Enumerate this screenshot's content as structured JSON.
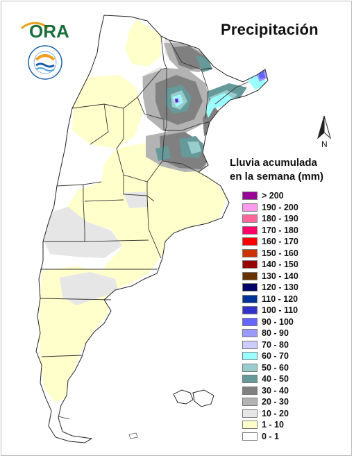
{
  "title": "Precipitación",
  "logo_ora": {
    "text": "ORA"
  },
  "logo_inta": {
    "ring_text": "INSTITUTO NACIONAL DE TECNOLOGÍA AGROPECUARIA · ARGENTINA"
  },
  "north_arrow": {
    "label": "N"
  },
  "legend": {
    "title_line1": "Lluvia acumulada",
    "title_line2": "en la semana (mm)",
    "items": [
      {
        "label": "> 200",
        "color": "#990099"
      },
      {
        "label": "190 - 200",
        "color": "#ff99ee"
      },
      {
        "label": "180 - 190",
        "color": "#ff6699"
      },
      {
        "label": "170 - 180",
        "color": "#ff0066"
      },
      {
        "label": "160 - 170",
        "color": "#ff0000"
      },
      {
        "label": "150 - 160",
        "color": "#cc3300"
      },
      {
        "label": "140 - 150",
        "color": "#990000"
      },
      {
        "label": "130 - 140",
        "color": "#663300"
      },
      {
        "label": "120 - 130",
        "color": "#000066"
      },
      {
        "label": "110 - 120",
        "color": "#003399"
      },
      {
        "label": "100 - 110",
        "color": "#3333cc"
      },
      {
        "label": "90 - 100",
        "color": "#6666ff"
      },
      {
        "label": "80 - 90",
        "color": "#9999ff"
      },
      {
        "label": "70 - 80",
        "color": "#ccccff"
      },
      {
        "label": "60 - 70",
        "color": "#99ffff"
      },
      {
        "label": "50 - 60",
        "color": "#99cccc"
      },
      {
        "label": "40 - 50",
        "color": "#669999"
      },
      {
        "label": "30 - 40",
        "color": "#808080"
      },
      {
        "label": "20 - 30",
        "color": "#b3b3b3"
      },
      {
        "label": "10 - 20",
        "color": "#e6e6e6"
      },
      {
        "label": "1 - 10",
        "color": "#ffffcc"
      },
      {
        "label": "0 - 1",
        "color": "#ffffff"
      }
    ]
  }
}
